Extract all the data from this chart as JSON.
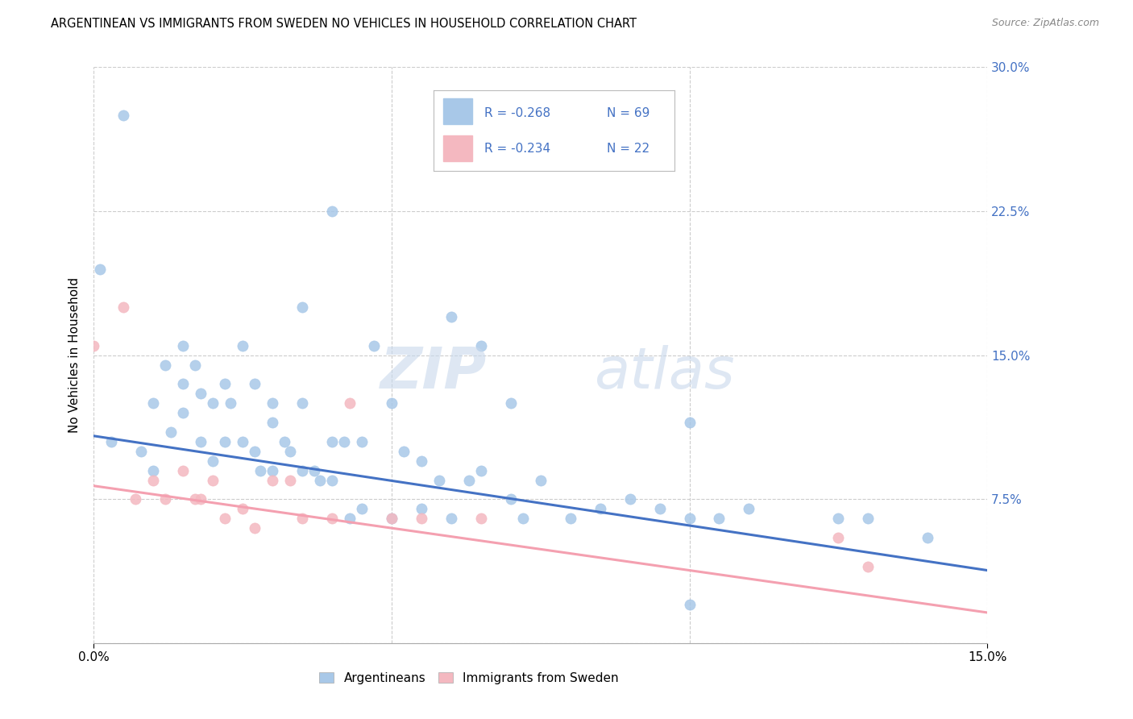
{
  "title": "ARGENTINEAN VS IMMIGRANTS FROM SWEDEN NO VEHICLES IN HOUSEHOLD CORRELATION CHART",
  "source": "Source: ZipAtlas.com",
  "ylabel_left": "No Vehicles in Household",
  "ylabel_right_ticks": [
    0.0,
    0.075,
    0.15,
    0.225,
    0.3
  ],
  "ylabel_right_labels": [
    "",
    "7.5%",
    "15.0%",
    "22.5%",
    "30.0%"
  ],
  "xlim": [
    0.0,
    0.15
  ],
  "ylim": [
    0.0,
    0.3
  ],
  "xticks": [
    0.0,
    0.15
  ],
  "xticklabels": [
    "0.0%",
    "15.0%"
  ],
  "legend_blue_r": "R = -0.268",
  "legend_blue_n": "N = 69",
  "legend_pink_r": "R = -0.234",
  "legend_pink_n": "N = 22",
  "legend_text_color": "#4472c4",
  "blue_color": "#a8c8e8",
  "pink_color": "#f4b8c0",
  "blue_line_color": "#4472c4",
  "pink_line_color": "#f4a0b0",
  "blue_trend_start": 0.108,
  "blue_trend_end": 0.038,
  "pink_trend_start": 0.082,
  "pink_trend_end": 0.016,
  "watermark_zip_color": "#c8d8ec",
  "watermark_atlas_color": "#c8d8ec",
  "blue_scatter_x": [
    0.001,
    0.003,
    0.005,
    0.008,
    0.01,
    0.01,
    0.012,
    0.013,
    0.015,
    0.015,
    0.015,
    0.017,
    0.018,
    0.018,
    0.02,
    0.02,
    0.022,
    0.022,
    0.023,
    0.025,
    0.025,
    0.027,
    0.027,
    0.028,
    0.03,
    0.03,
    0.03,
    0.032,
    0.033,
    0.035,
    0.035,
    0.035,
    0.037,
    0.038,
    0.04,
    0.04,
    0.04,
    0.042,
    0.043,
    0.045,
    0.045,
    0.047,
    0.05,
    0.05,
    0.052,
    0.055,
    0.055,
    0.058,
    0.06,
    0.06,
    0.063,
    0.065,
    0.065,
    0.07,
    0.07,
    0.072,
    0.075,
    0.08,
    0.085,
    0.09,
    0.095,
    0.1,
    0.1,
    0.1,
    0.105,
    0.11,
    0.125,
    0.13,
    0.14
  ],
  "blue_scatter_y": [
    0.195,
    0.105,
    0.275,
    0.1,
    0.125,
    0.09,
    0.145,
    0.11,
    0.155,
    0.135,
    0.12,
    0.145,
    0.13,
    0.105,
    0.125,
    0.095,
    0.135,
    0.105,
    0.125,
    0.155,
    0.105,
    0.135,
    0.1,
    0.09,
    0.125,
    0.115,
    0.09,
    0.105,
    0.1,
    0.175,
    0.125,
    0.09,
    0.09,
    0.085,
    0.225,
    0.105,
    0.085,
    0.105,
    0.065,
    0.105,
    0.07,
    0.155,
    0.125,
    0.065,
    0.1,
    0.095,
    0.07,
    0.085,
    0.17,
    0.065,
    0.085,
    0.155,
    0.09,
    0.125,
    0.075,
    0.065,
    0.085,
    0.065,
    0.07,
    0.075,
    0.07,
    0.115,
    0.065,
    0.02,
    0.065,
    0.07,
    0.065,
    0.065,
    0.055
  ],
  "pink_scatter_x": [
    0.0,
    0.005,
    0.007,
    0.01,
    0.012,
    0.015,
    0.017,
    0.018,
    0.02,
    0.022,
    0.025,
    0.027,
    0.03,
    0.033,
    0.035,
    0.04,
    0.043,
    0.05,
    0.055,
    0.065,
    0.125,
    0.13
  ],
  "pink_scatter_y": [
    0.155,
    0.175,
    0.075,
    0.085,
    0.075,
    0.09,
    0.075,
    0.075,
    0.085,
    0.065,
    0.07,
    0.06,
    0.085,
    0.085,
    0.065,
    0.065,
    0.125,
    0.065,
    0.065,
    0.065,
    0.055,
    0.04
  ],
  "blue_scatter_size": 90,
  "pink_scatter_size": 90
}
